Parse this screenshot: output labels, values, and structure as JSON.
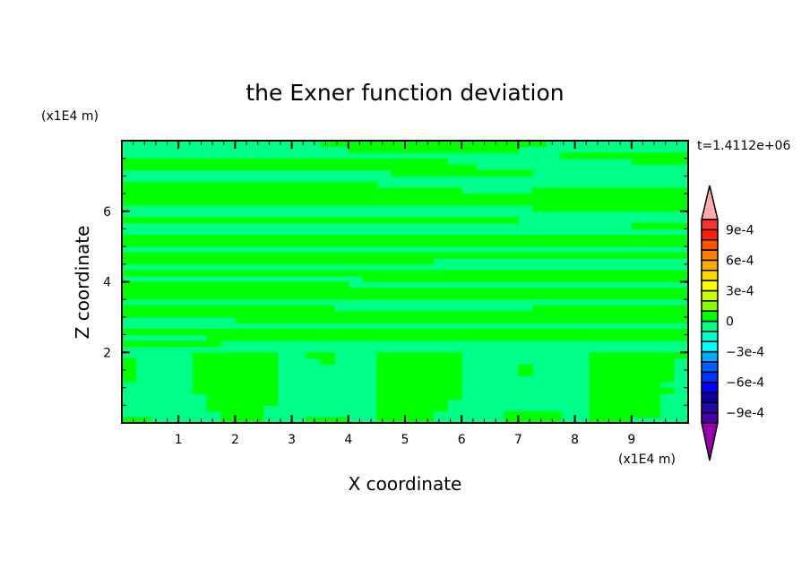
{
  "chart_data": {
    "type": "heatmap",
    "title": "the Exner function deviation",
    "xlabel": "X coordinate",
    "ylabel": "Z coordinate",
    "x_unit": "(x1E4 m)",
    "y_unit": "(x1E4 m)",
    "time_label": "t=1.4112e+06",
    "xlim": [
      0,
      10
    ],
    "ylim": [
      0,
      8
    ],
    "x_ticks": [
      1,
      2,
      3,
      4,
      5,
      6,
      7,
      8,
      9
    ],
    "y_ticks": [
      2,
      4,
      6
    ],
    "x_minor_step": 0.2,
    "y_minor_step": 0.5,
    "grid": false,
    "colorbar": {
      "placement": "right",
      "levels": [
        -0.001,
        -0.0009,
        -0.0008,
        -0.0007,
        -0.0006,
        -0.0005,
        -0.0004,
        -0.0003,
        -0.0002,
        -0.0001,
        0,
        0.0001,
        0.0002,
        0.0003,
        0.0004,
        0.0005,
        0.0006,
        0.0007,
        0.0008,
        0.0009,
        0.001
      ],
      "colors": [
        "#4a00a8",
        "#1e0aa6",
        "#0a00a0",
        "#0000ff",
        "#0033ff",
        "#0060ff",
        "#00a8ff",
        "#00ffff",
        "#00ffd0",
        "#00ff88",
        "#00ff00",
        "#88ff00",
        "#ccff00",
        "#ffff00",
        "#ffd800",
        "#ffaa00",
        "#ff8000",
        "#ff5500",
        "#ff2000",
        "#ff3030"
      ],
      "over_color": "#ffaaaa",
      "under_color": "#9900aa",
      "tick_labels": [
        {
          "value": 0.0009,
          "label": "9e-4"
        },
        {
          "value": 0.0006,
          "label": "6e-4"
        },
        {
          "value": 0.0003,
          "label": "3e-4"
        },
        {
          "value": 0,
          "label": "0"
        },
        {
          "value": -0.0003,
          "label": "−3e-4"
        },
        {
          "value": -0.0006,
          "label": "−6e-4"
        },
        {
          "value": -0.0009,
          "label": "−9e-4"
        }
      ]
    },
    "field": {
      "level_colors": {
        "0": "#00ff88",
        "1": "#00ff00"
      },
      "columns": 40,
      "rows_top_to_bottom_runs": [
        [
          [
            0,
            14
          ],
          [
            1,
            16
          ],
          [
            0,
            10
          ]
        ],
        [
          [
            0,
            16
          ],
          [
            1,
            12
          ],
          [
            0,
            12
          ]
        ],
        [
          [
            0,
            31
          ],
          [
            1,
            9
          ]
        ],
        [
          [
            1,
            23
          ],
          [
            0,
            13
          ],
          [
            1,
            4
          ]
        ],
        [
          [
            1,
            25
          ],
          [
            0,
            15
          ]
        ],
        [
          [
            0,
            19
          ],
          [
            1,
            10
          ],
          [
            0,
            11
          ]
        ],
        [
          [
            0,
            40
          ]
        ],
        [
          [
            1,
            18
          ],
          [
            0,
            22
          ]
        ],
        [
          [
            1,
            24
          ],
          [
            0,
            5
          ],
          [
            1,
            11
          ]
        ],
        [
          [
            1,
            40
          ]
        ],
        [
          [
            1,
            40
          ]
        ],
        [
          [
            0,
            29
          ],
          [
            1,
            11
          ]
        ],
        [
          [
            0,
            40
          ]
        ],
        [
          [
            1,
            28
          ],
          [
            0,
            12
          ]
        ],
        [
          [
            0,
            36
          ],
          [
            1,
            4
          ]
        ],
        [
          [
            0,
            40
          ]
        ],
        [
          [
            1,
            40
          ]
        ],
        [
          [
            1,
            40
          ]
        ],
        [
          [
            0,
            40
          ]
        ],
        [
          [
            1,
            40
          ]
        ],
        [
          [
            1,
            22
          ],
          [
            0,
            18
          ]
        ],
        [
          [
            0,
            40
          ]
        ],
        [
          [
            1,
            40
          ]
        ],
        [
          [
            0,
            17
          ],
          [
            1,
            23
          ]
        ],
        [
          [
            1,
            16
          ],
          [
            0,
            24
          ]
        ],
        [
          [
            1,
            40
          ]
        ],
        [
          [
            1,
            40
          ]
        ],
        [
          [
            0,
            40
          ]
        ],
        [
          [
            1,
            15
          ],
          [
            0,
            14
          ],
          [
            1,
            11
          ]
        ],
        [
          [
            1,
            40
          ]
        ],
        [
          [
            0,
            8
          ],
          [
            1,
            32
          ]
        ],
        [
          [
            0,
            40
          ]
        ],
        [
          [
            1,
            40
          ]
        ],
        [
          [
            0,
            6
          ],
          [
            1,
            34
          ]
        ],
        [
          [
            1,
            7
          ],
          [
            0,
            33
          ]
        ],
        [
          [
            0,
            40
          ]
        ],
        [
          [
            0,
            5
          ],
          [
            1,
            6
          ],
          [
            0,
            2
          ],
          [
            1,
            2
          ],
          [
            0,
            3
          ],
          [
            1,
            6
          ],
          [
            0,
            9
          ],
          [
            1,
            7
          ]
        ],
        [
          [
            1,
            1
          ],
          [
            0,
            4
          ],
          [
            1,
            6
          ],
          [
            0,
            3
          ],
          [
            1,
            1
          ],
          [
            0,
            3
          ],
          [
            1,
            6
          ],
          [
            0,
            9
          ],
          [
            1,
            6
          ],
          [
            0,
            1
          ]
        ],
        [
          [
            1,
            1
          ],
          [
            0,
            4
          ],
          [
            1,
            6
          ],
          [
            0,
            7
          ],
          [
            1,
            6
          ],
          [
            0,
            4
          ],
          [
            1,
            1
          ],
          [
            0,
            4
          ],
          [
            1,
            6
          ],
          [
            0,
            1
          ]
        ],
        [
          [
            1,
            1
          ],
          [
            0,
            4
          ],
          [
            1,
            6
          ],
          [
            0,
            7
          ],
          [
            1,
            6
          ],
          [
            0,
            4
          ],
          [
            1,
            1
          ],
          [
            0,
            4
          ],
          [
            1,
            6
          ],
          [
            0,
            1
          ]
        ],
        [
          [
            1,
            1
          ],
          [
            0,
            4
          ],
          [
            1,
            6
          ],
          [
            0,
            7
          ],
          [
            1,
            6
          ],
          [
            0,
            9
          ],
          [
            1,
            6
          ],
          [
            0,
            1
          ]
        ],
        [
          [
            0,
            5
          ],
          [
            1,
            6
          ],
          [
            0,
            7
          ],
          [
            1,
            6
          ],
          [
            0,
            9
          ],
          [
            1,
            5
          ],
          [
            0,
            2
          ]
        ],
        [
          [
            0,
            5
          ],
          [
            1,
            6
          ],
          [
            0,
            7
          ],
          [
            1,
            6
          ],
          [
            0,
            9
          ],
          [
            1,
            6
          ],
          [
            0,
            1
          ]
        ],
        [
          [
            0,
            6
          ],
          [
            1,
            5
          ],
          [
            0,
            7
          ],
          [
            1,
            6
          ],
          [
            0,
            9
          ],
          [
            1,
            5
          ],
          [
            0,
            2
          ]
        ],
        [
          [
            0,
            6
          ],
          [
            1,
            5
          ],
          [
            0,
            7
          ],
          [
            1,
            5
          ],
          [
            0,
            10
          ],
          [
            1,
            5
          ],
          [
            0,
            2
          ]
        ],
        [
          [
            0,
            6
          ],
          [
            1,
            4
          ],
          [
            0,
            8
          ],
          [
            1,
            5
          ],
          [
            0,
            10
          ],
          [
            1,
            5
          ],
          [
            0,
            2
          ]
        ],
        [
          [
            0,
            7
          ],
          [
            1,
            3
          ],
          [
            0,
            8
          ],
          [
            1,
            4
          ],
          [
            0,
            5
          ],
          [
            1,
            4
          ],
          [
            0,
            2
          ],
          [
            1,
            5
          ],
          [
            0,
            2
          ]
        ],
        [
          [
            1,
            2
          ],
          [
            0,
            5
          ],
          [
            1,
            3
          ],
          [
            0,
            3
          ],
          [
            1,
            3
          ],
          [
            0,
            2
          ],
          [
            1,
            4
          ],
          [
            0,
            5
          ],
          [
            1,
            4
          ],
          [
            0,
            2
          ],
          [
            1,
            3
          ],
          [
            0,
            4
          ]
        ]
      ]
    }
  }
}
